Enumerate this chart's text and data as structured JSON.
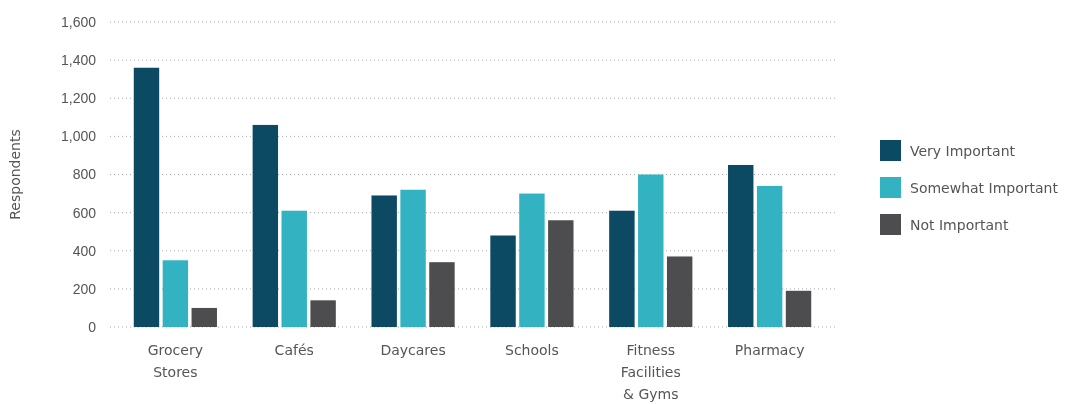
{
  "chart_data": {
    "type": "bar",
    "ylabel": "Respondents",
    "categories": [
      "Grocery Stores",
      "Cafés",
      "Daycares",
      "Schools",
      "Fitness Facilities & Gyms",
      "Pharmacy"
    ],
    "series": [
      {
        "name": "Very Important",
        "color": "#0b4a62",
        "values": [
          1360,
          1060,
          690,
          480,
          610,
          850
        ]
      },
      {
        "name": "Somewhat Important",
        "color": "#33b2c2",
        "values": [
          350,
          610,
          720,
          700,
          800,
          740
        ]
      },
      {
        "name": "Not Important",
        "color": "#4d4d4f",
        "values": [
          100,
          140,
          340,
          560,
          370,
          190
        ]
      }
    ],
    "ylim": [
      0,
      1600
    ],
    "yticks": [
      {
        "value": 0,
        "label": "0"
      },
      {
        "value": 200,
        "label": "200"
      },
      {
        "value": 400,
        "label": "400"
      },
      {
        "value": 600,
        "label": "600"
      },
      {
        "value": 800,
        "label": "800"
      },
      {
        "value": 1000,
        "label": "1,000"
      },
      {
        "value": 1200,
        "label": "1,200"
      },
      {
        "value": 1400,
        "label": "1,400"
      },
      {
        "value": 1600,
        "label": "1,600"
      }
    ],
    "grid": "y",
    "legend": "right"
  }
}
